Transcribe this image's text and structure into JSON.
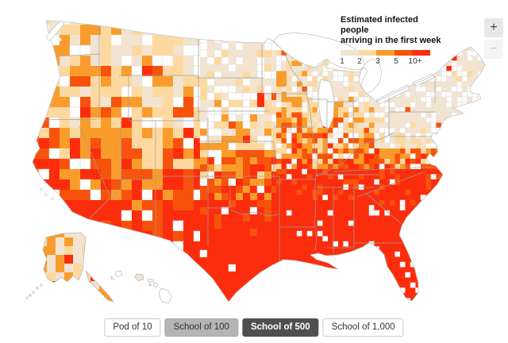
{
  "page": {
    "background": "#ffffff"
  },
  "legend": {
    "title_line1": "Estimated infected people",
    "title_line2": "arriving in the first week",
    "ticks": [
      "1",
      "2",
      "3",
      "5",
      "10+"
    ],
    "colors": [
      "#f2e4d0",
      "#fdd9a0",
      "#fa9c2b",
      "#f7530d",
      "#fc2d0c"
    ],
    "no_data_color": "#ffffff"
  },
  "map": {
    "label": "U.S. county choropleth map",
    "state_border_color": "#9e9e9e",
    "coast_color": "#c6c6c6",
    "county_outline_color": "#d9d9d9"
  },
  "zoom_controls": {
    "zoom_in_label": "+",
    "zoom_out_label": "−"
  },
  "scenario_buttons": [
    {
      "label": "Pod of 10",
      "variant": "outline",
      "selected": false
    },
    {
      "label": "School of 100",
      "variant": "gray",
      "selected": false
    },
    {
      "label": "School of 500",
      "variant": "dark",
      "selected": true
    },
    {
      "label": "School of 1,000",
      "variant": "outline",
      "selected": false
    }
  ]
}
